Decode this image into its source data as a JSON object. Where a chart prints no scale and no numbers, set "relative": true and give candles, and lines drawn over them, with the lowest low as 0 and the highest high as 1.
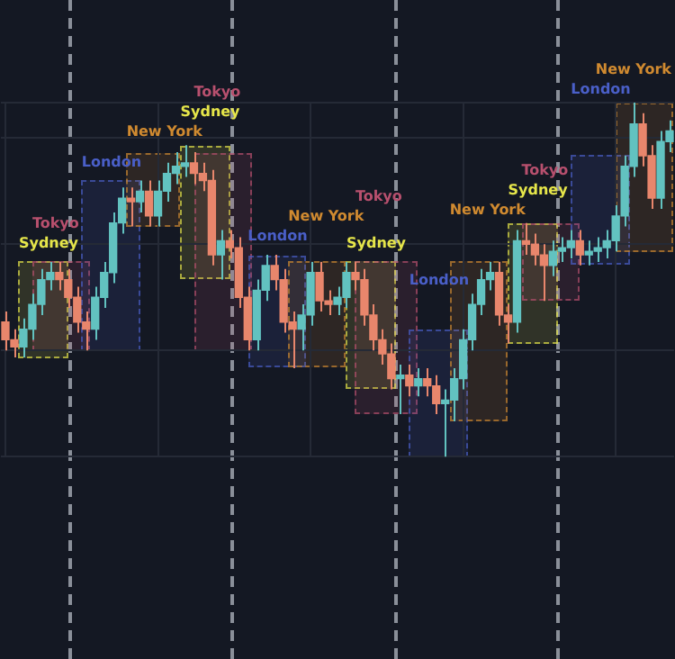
{
  "chart_data": {
    "type": "candlestick",
    "relative": true,
    "grid": true,
    "categories": [
      null,
      null,
      null,
      null,
      null,
      null,
      null,
      null,
      null,
      null,
      null,
      null,
      null,
      null,
      null,
      null,
      null,
      null,
      null,
      null,
      null,
      null,
      null,
      null,
      null,
      null,
      null,
      null,
      null,
      null,
      null,
      null,
      null,
      null,
      null,
      null,
      null,
      null,
      null,
      null,
      null,
      null,
      null,
      null,
      null,
      null,
      null,
      null,
      null,
      null,
      null,
      null,
      null,
      null,
      null,
      null,
      null,
      null,
      null,
      null,
      null,
      null,
      null,
      null,
      null,
      null,
      null,
      null,
      null,
      null,
      null,
      null,
      null,
      null,
      null
    ],
    "ohlc": [
      [
        0.38,
        0.41,
        0.3,
        0.33
      ],
      [
        0.33,
        0.36,
        0.28,
        0.31
      ],
      [
        0.31,
        0.39,
        0.28,
        0.36
      ],
      [
        0.36,
        0.46,
        0.33,
        0.43
      ],
      [
        0.43,
        0.53,
        0.4,
        0.5
      ],
      [
        0.5,
        0.55,
        0.47,
        0.52
      ],
      [
        0.52,
        0.55,
        0.47,
        0.5
      ],
      [
        0.5,
        0.53,
        0.42,
        0.45
      ],
      [
        0.45,
        0.48,
        0.35,
        0.38
      ],
      [
        0.38,
        0.41,
        0.3,
        0.36
      ],
      [
        0.36,
        0.48,
        0.33,
        0.45
      ],
      [
        0.45,
        0.55,
        0.42,
        0.52
      ],
      [
        0.52,
        0.69,
        0.49,
        0.66
      ],
      [
        0.66,
        0.76,
        0.63,
        0.73
      ],
      [
        0.73,
        0.76,
        0.65,
        0.72
      ],
      [
        0.72,
        0.78,
        0.69,
        0.75
      ],
      [
        0.75,
        0.78,
        0.65,
        0.68
      ],
      [
        0.68,
        0.78,
        0.65,
        0.75
      ],
      [
        0.75,
        0.83,
        0.72,
        0.8
      ],
      [
        0.8,
        0.86,
        0.77,
        0.82
      ],
      [
        0.82,
        0.88,
        0.79,
        0.83
      ],
      [
        0.83,
        0.86,
        0.77,
        0.8
      ],
      [
        0.8,
        0.83,
        0.75,
        0.78
      ],
      [
        0.78,
        0.81,
        0.54,
        0.57
      ],
      [
        0.57,
        0.64,
        0.5,
        0.61
      ],
      [
        0.61,
        0.64,
        0.56,
        0.59
      ],
      [
        0.59,
        0.62,
        0.42,
        0.45
      ],
      [
        0.45,
        0.48,
        0.3,
        0.33
      ],
      [
        0.33,
        0.5,
        0.3,
        0.47
      ],
      [
        0.47,
        0.57,
        0.44,
        0.54
      ],
      [
        0.54,
        0.57,
        0.47,
        0.5
      ],
      [
        0.5,
        0.53,
        0.35,
        0.38
      ],
      [
        0.38,
        0.41,
        0.25,
        0.36
      ],
      [
        0.36,
        0.43,
        0.3,
        0.4
      ],
      [
        0.4,
        0.55,
        0.37,
        0.52
      ],
      [
        0.52,
        0.55,
        0.41,
        0.44
      ],
      [
        0.44,
        0.47,
        0.4,
        0.43
      ],
      [
        0.43,
        0.48,
        0.4,
        0.45
      ],
      [
        0.45,
        0.55,
        0.42,
        0.52
      ],
      [
        0.52,
        0.55,
        0.47,
        0.5
      ],
      [
        0.5,
        0.53,
        0.37,
        0.4
      ],
      [
        0.4,
        0.43,
        0.3,
        0.33
      ],
      [
        0.33,
        0.36,
        0.26,
        0.29
      ],
      [
        0.29,
        0.32,
        0.19,
        0.22
      ],
      [
        0.22,
        0.26,
        0.12,
        0.23
      ],
      [
        0.23,
        0.26,
        0.17,
        0.2
      ],
      [
        0.2,
        0.25,
        0.17,
        0.22
      ],
      [
        0.22,
        0.25,
        0.17,
        0.2
      ],
      [
        0.2,
        0.23,
        0.12,
        0.15
      ],
      [
        0.15,
        0.19,
        0.0,
        0.16
      ],
      [
        0.16,
        0.25,
        0.1,
        0.22
      ],
      [
        0.22,
        0.36,
        0.19,
        0.33
      ],
      [
        0.33,
        0.46,
        0.3,
        0.43
      ],
      [
        0.43,
        0.53,
        0.4,
        0.5
      ],
      [
        0.5,
        0.55,
        0.47,
        0.52
      ],
      [
        0.52,
        0.55,
        0.37,
        0.4
      ],
      [
        0.4,
        0.43,
        0.32,
        0.38
      ],
      [
        0.38,
        0.64,
        0.35,
        0.61
      ],
      [
        0.61,
        0.66,
        0.57,
        0.6
      ],
      [
        0.6,
        0.63,
        0.54,
        0.57
      ],
      [
        0.57,
        0.6,
        0.44,
        0.54
      ],
      [
        0.54,
        0.61,
        0.51,
        0.58
      ],
      [
        0.58,
        0.62,
        0.55,
        0.59
      ],
      [
        0.59,
        0.64,
        0.56,
        0.61
      ],
      [
        0.61,
        0.64,
        0.54,
        0.57
      ],
      [
        0.57,
        0.61,
        0.54,
        0.58
      ],
      [
        0.58,
        0.62,
        0.55,
        0.59
      ],
      [
        0.59,
        0.64,
        0.56,
        0.61
      ],
      [
        0.61,
        0.71,
        0.58,
        0.68
      ],
      [
        0.68,
        0.85,
        0.65,
        0.82
      ],
      [
        0.82,
        1.0,
        0.79,
        0.94
      ],
      [
        0.94,
        0.97,
        0.82,
        0.85
      ],
      [
        0.85,
        0.88,
        0.7,
        0.73
      ],
      [
        0.73,
        0.92,
        0.7,
        0.89
      ],
      [
        0.89,
        0.95,
        0.86,
        0.92
      ]
    ],
    "colors": [
      "#e8866c",
      "#e8866c",
      "#62c2c0",
      "#62c2c0",
      "#62c2c0",
      "#62c2c0",
      "#e8866c",
      "#e8866c",
      "#e8866c",
      "#e8866c",
      "#62c2c0",
      "#62c2c0",
      "#62c2c0",
      "#62c2c0",
      "#e8866c",
      "#62c2c0",
      "#e8866c",
      "#62c2c0",
      "#62c2c0",
      "#62c2c0",
      "#62c2c0",
      "#e8866c",
      "#e8866c",
      "#e8866c",
      "#62c2c0",
      "#e8866c",
      "#e8866c",
      "#e8866c",
      "#62c2c0",
      "#62c2c0",
      "#e8866c",
      "#e8866c",
      "#e8866c",
      "#62c2c0",
      "#62c2c0",
      "#e8866c",
      "#e8866c",
      "#62c2c0",
      "#62c2c0",
      "#e8866c",
      "#e8866c",
      "#e8866c",
      "#e8866c",
      "#e8866c",
      "#62c2c0",
      "#e8866c",
      "#62c2c0",
      "#e8866c",
      "#e8866c",
      "#62c2c0",
      "#62c2c0",
      "#62c2c0",
      "#62c2c0",
      "#62c2c0",
      "#62c2c0",
      "#e8866c",
      "#e8866c",
      "#62c2c0",
      "#e8866c",
      "#e8866c",
      "#e8866c",
      "#62c2c0",
      "#62c2c0",
      "#62c2c0",
      "#e8866c",
      "#62c2c0",
      "#62c2c0",
      "#62c2c0",
      "#62c2c0",
      "#62c2c0",
      "#62c2c0",
      "#e8866c",
      "#e8866c",
      "#62c2c0",
      "#62c2c0"
    ],
    "annotations": [
      "Sydney",
      "Tokyo",
      "London",
      "New York",
      "Sydney",
      "Tokyo",
      "London",
      "New York",
      "Sydney",
      "Tokyo",
      "London",
      "New York",
      "Sydney",
      "Tokyo",
      "London",
      "New York"
    ]
  }
}
